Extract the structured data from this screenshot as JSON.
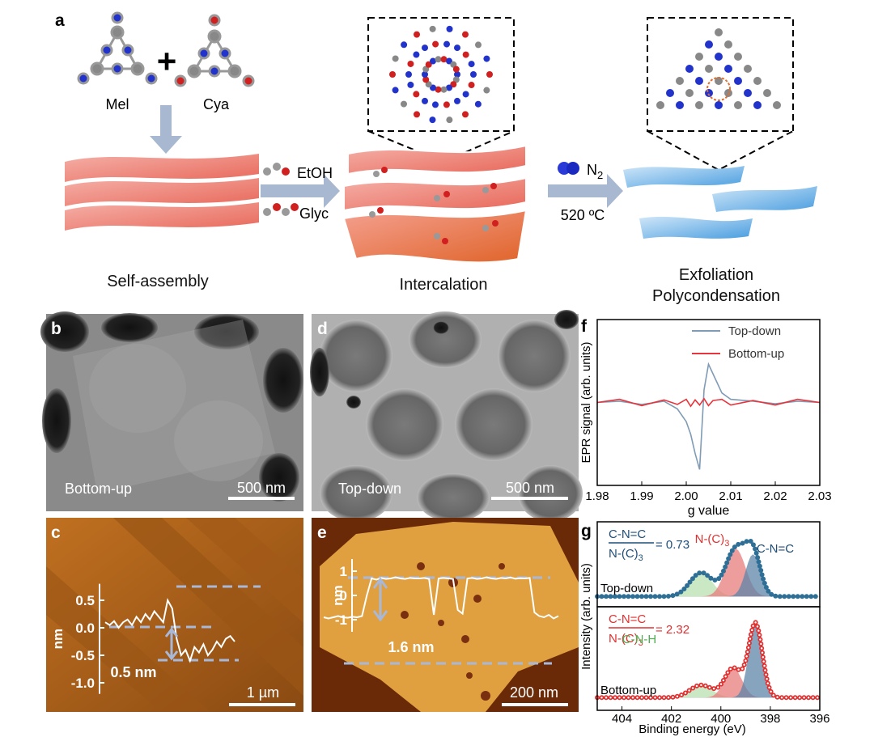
{
  "panels": {
    "a": {
      "label": "a",
      "monomers": [
        "Mel",
        "Cya"
      ],
      "plus": "+",
      "solvents": [
        "EtOH",
        "Glyc"
      ],
      "gas": {
        "formula": "N",
        "subscript": "2"
      },
      "temperature": "520 ºC",
      "steps": [
        "Self-assembly",
        "Intercalation",
        "Exfoliation",
        "Polycondensation"
      ]
    },
    "b": {
      "label": "b",
      "caption": "Bottom-up",
      "scale_bar": "500 nm"
    },
    "c": {
      "label": "c",
      "scale_bar": "1 µm",
      "step": "0.5 nm",
      "ylabel": "nm",
      "ylim": [
        -1.2,
        0.8
      ],
      "yticks": [
        0.5,
        {
          "value": 0,
          "label": "0.0"
        },
        -0.5,
        {
          "value": -1,
          "label": "-1.0"
        }
      ],
      "values": [
        0.1,
        0.05,
        0.12,
        0.0,
        0.1,
        0.15,
        0.05,
        0.2,
        0.1,
        0.25,
        0.15,
        0.3,
        0.2,
        0.1,
        0.5,
        0.35,
        -0.2,
        -0.5,
        -0.4,
        -0.6,
        -0.35,
        -0.45,
        -0.3,
        -0.5,
        -0.4,
        -0.25,
        -0.35,
        -0.2,
        -0.15,
        -0.25
      ]
    },
    "d": {
      "label": "d",
      "caption": "Top-down",
      "scale_bar": "500 nm"
    },
    "e": {
      "label": "e",
      "scale_bar": "200 nm",
      "step": "1.6 nm",
      "ylabel": "nm",
      "ylim": [
        -1.5,
        1.5
      ],
      "yticks": [
        1,
        0,
        -1
      ],
      "values": [
        -0.9,
        -0.95,
        -0.9,
        -0.85,
        -0.9,
        -0.92,
        -0.88,
        -0.9,
        -0.85,
        0.0,
        0.7,
        0.65,
        0.72,
        0.68,
        0.7,
        0.75,
        0.7,
        0.68,
        0.72,
        0.7,
        0.7,
        0.72,
        0.68,
        -0.8,
        0.7,
        0.72,
        0.7,
        0.68,
        -0.6,
        -0.75,
        0.7,
        0.72,
        0.68,
        0.7,
        0.75,
        0.7,
        0.68,
        0.72,
        0.7,
        0.74,
        0.69,
        0.71,
        0.7,
        0.72,
        -0.7,
        -0.85,
        -0.9,
        -0.8,
        -0.95,
        -0.85
      ]
    },
    "f": {
      "label": "f",
      "type": "line",
      "xlabel": "g value",
      "ylabel": "EPR signal (arb. units)",
      "xlim": [
        1.98,
        2.03
      ],
      "xticks": [
        1.98,
        1.99,
        {
          "value": 2,
          "label": "2.00"
        },
        2.01,
        2.02,
        2.03
      ],
      "ylim": [
        -1.3,
        1.3
      ],
      "legend": "upper right",
      "x": [
        1.98,
        1.985,
        1.99,
        1.995,
        1.998,
        2.0,
        2.001,
        2.002,
        2.003,
        2.004,
        2.005,
        2.006,
        2.008,
        2.01,
        2.015,
        2.02,
        2.025,
        2.03
      ],
      "series": [
        {
          "name": "Top-down",
          "color": "#7f9bb5",
          "values": [
            0,
            0.02,
            -0.03,
            0.02,
            -0.1,
            -0.3,
            -0.5,
            -0.8,
            -1.05,
            0.2,
            0.6,
            0.45,
            0.15,
            0.05,
            0.02,
            -0.02,
            0.02,
            0
          ]
        },
        {
          "name": "Bottom-up",
          "color": "#e8343c",
          "values": [
            0,
            0.05,
            -0.05,
            0.04,
            -0.03,
            0.05,
            -0.06,
            0.04,
            -0.04,
            0.06,
            -0.05,
            0.03,
            0.05,
            -0.04,
            0.03,
            -0.04,
            0.05,
            0
          ]
        }
      ]
    },
    "g": {
      "label": "g",
      "type": "peak-fit",
      "xlabel": "Binding energy (eV)",
      "ylabel": "Intensity (arb. units)",
      "xlim": [
        405,
        396
      ],
      "xticks": [
        404,
        402,
        400,
        398,
        396
      ],
      "ylim": [
        -0.15,
        1
      ],
      "subplots": [
        {
          "sample": "Top-down",
          "ratio_numerator": "C-N=C",
          "ratio_denominator": "N-(C)",
          "ratio_subscript": "3",
          "ratio_value": "= 0.73",
          "ratio_color": "#1f4e79",
          "envelope_color": "#2f6f96",
          "peak_labels": [
            {
              "text": "N-(C)",
              "subscript": "3",
              "color": "#e03030"
            },
            {
              "text": "C-N=C",
              "color": "#1f4e79"
            }
          ],
          "peaks": [
            {
              "center": 400.8,
              "height": 0.35,
              "width": 0.9,
              "color": "#b9e0b0"
            },
            {
              "center": 399.4,
              "height": 0.7,
              "width": 0.8,
              "color": "#e87c7c"
            },
            {
              "center": 398.7,
              "height": 0.62,
              "width": 0.6,
              "color": "#5d86a8"
            }
          ]
        },
        {
          "sample": "Bottom-up",
          "ratio_numerator": "C-N=C",
          "ratio_denominator": "N-(C)",
          "ratio_subscript": "3",
          "ratio_value": "= 2.32",
          "ratio_color": "#e03030",
          "envelope_color": "#e03030",
          "peak_labels": [
            {
              "text": "C-N-H",
              "color": "#4caf50"
            }
          ],
          "peaks": [
            {
              "center": 400.8,
              "height": 0.15,
              "width": 0.9,
              "color": "#b9e0b0"
            },
            {
              "center": 399.5,
              "height": 0.35,
              "width": 0.7,
              "color": "#e87c7c"
            },
            {
              "center": 398.6,
              "height": 0.88,
              "width": 0.55,
              "color": "#5d86a8"
            }
          ]
        }
      ]
    }
  }
}
